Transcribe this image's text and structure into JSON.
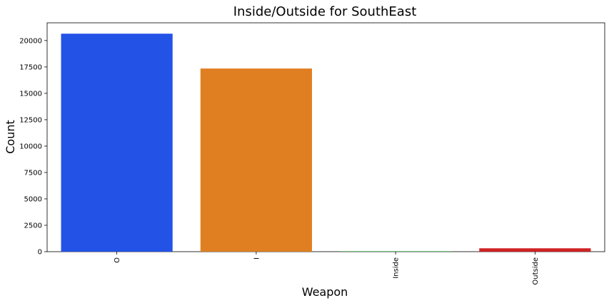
{
  "chart_data": {
    "type": "bar",
    "title": "Inside/Outside for SouthEast",
    "xlabel": "Weapon",
    "ylabel": "Count",
    "categories": [
      "O",
      "I",
      "Inside",
      "Outside"
    ],
    "values": [
      20650,
      17350,
      40,
      320
    ],
    "colors": [
      "#2352e6",
      "#e07f22",
      "#1f9e2b",
      "#d02224"
    ],
    "ylim": [
      0,
      21680
    ],
    "yticks": [
      0,
      2500,
      5000,
      7500,
      10000,
      12500,
      15000,
      17500,
      20000
    ],
    "grid": false,
    "legend": "none"
  }
}
